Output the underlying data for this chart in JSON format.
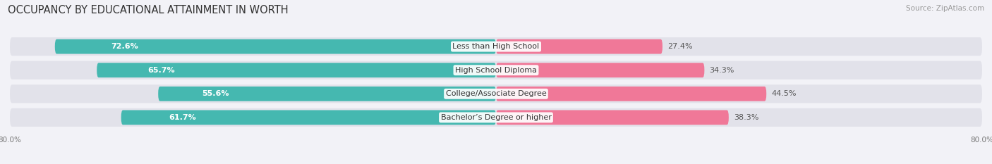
{
  "title": "OCCUPANCY BY EDUCATIONAL ATTAINMENT IN WORTH",
  "source": "Source: ZipAtlas.com",
  "categories": [
    "Less than High School",
    "High School Diploma",
    "College/Associate Degree",
    "Bachelor’s Degree or higher"
  ],
  "owner_values": [
    72.6,
    65.7,
    55.6,
    61.7
  ],
  "renter_values": [
    27.4,
    34.3,
    44.5,
    38.3
  ],
  "owner_color": "#45B8B0",
  "renter_color": "#F07898",
  "background_color": "#f2f2f7",
  "bar_bg_color": "#e2e2ea",
  "axis_limit": 80.0,
  "bar_height": 0.62,
  "title_fontsize": 10.5,
  "source_fontsize": 7.5,
  "label_fontsize": 8,
  "tick_fontsize": 7.5,
  "legend_fontsize": 8.5,
  "owner_label_color": "#ffffff",
  "renter_label_color": "#555555",
  "center_label_color": "#333333"
}
